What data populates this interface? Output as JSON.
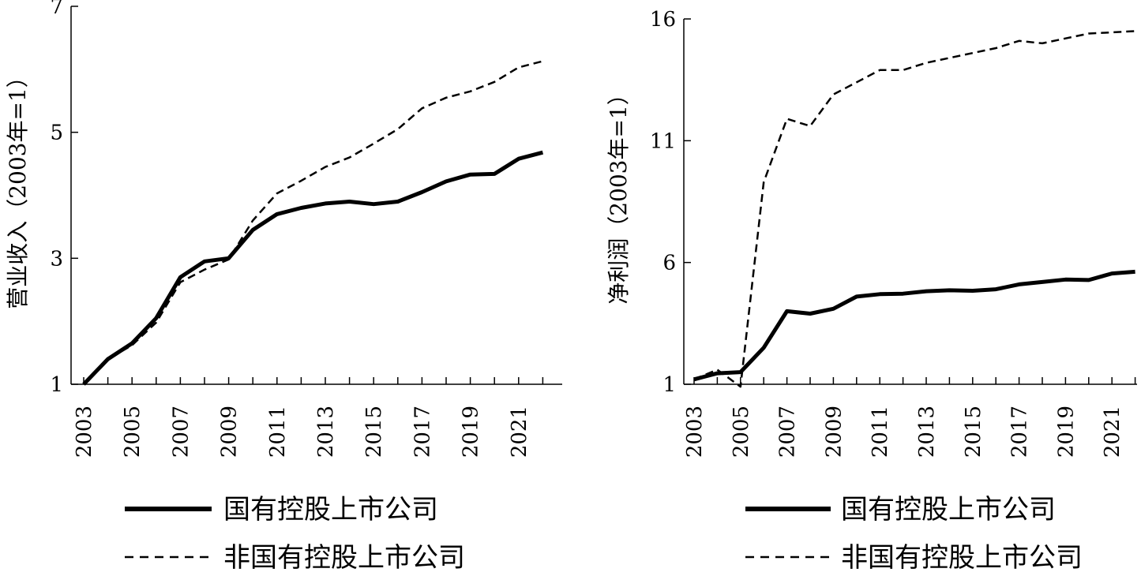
{
  "chart_data": [
    {
      "type": "line",
      "title": "",
      "xlabel": "",
      "ylabel": "营业收入（2003年=1）",
      "ylim": [
        1,
        7
      ],
      "yticks": [
        1,
        3,
        5,
        7
      ],
      "x": [
        2003,
        2004,
        2005,
        2006,
        2007,
        2008,
        2009,
        2010,
        2011,
        2012,
        2013,
        2014,
        2015,
        2016,
        2017,
        2018,
        2019,
        2020,
        2021,
        2022
      ],
      "xticks": [
        "2003",
        "2005",
        "2007",
        "2009",
        "2011",
        "2013",
        "2015",
        "2017",
        "2019",
        "2021"
      ],
      "series": [
        {
          "name": "国有控股上市公司",
          "style": "solid",
          "values": [
            1.0,
            1.4,
            1.65,
            2.05,
            2.7,
            2.95,
            3.0,
            3.45,
            3.7,
            3.8,
            3.87,
            3.9,
            3.86,
            3.9,
            4.05,
            4.22,
            4.33,
            4.34,
            4.58,
            4.68
          ]
        },
        {
          "name": "非国有控股上市公司",
          "style": "dashed",
          "values": [
            1.0,
            1.4,
            1.62,
            1.98,
            2.62,
            2.82,
            2.98,
            3.6,
            4.03,
            4.23,
            4.45,
            4.6,
            4.82,
            5.05,
            5.38,
            5.55,
            5.65,
            5.8,
            6.03,
            6.13
          ]
        }
      ],
      "grid": false,
      "legend_position": "bottom"
    },
    {
      "type": "line",
      "title": "",
      "xlabel": "",
      "ylabel": "净利润（2003年=1）",
      "ylim": [
        1,
        16
      ],
      "yticks": [
        1,
        6,
        11,
        16
      ],
      "x": [
        2003,
        2004,
        2005,
        2006,
        2007,
        2008,
        2009,
        2010,
        2011,
        2012,
        2013,
        2014,
        2015,
        2016,
        2017,
        2018,
        2019,
        2020,
        2021,
        2022
      ],
      "xticks": [
        "2003",
        "2005",
        "2007",
        "2009",
        "2011",
        "2013",
        "2015",
        "2017",
        "2019",
        "2021"
      ],
      "series": [
        {
          "name": "国有控股上市公司",
          "style": "solid",
          "values": [
            1.2,
            1.45,
            1.5,
            2.5,
            4.0,
            3.9,
            4.1,
            4.6,
            4.7,
            4.72,
            4.82,
            4.86,
            4.84,
            4.9,
            5.1,
            5.2,
            5.3,
            5.28,
            5.55,
            5.62
          ]
        },
        {
          "name": "非国有控股上市公司",
          "style": "dashed",
          "values": [
            1.2,
            1.6,
            0.9,
            9.3,
            11.9,
            11.6,
            12.9,
            13.4,
            13.9,
            13.9,
            14.2,
            14.4,
            14.6,
            14.8,
            15.1,
            15.0,
            15.2,
            15.4,
            15.45,
            15.5
          ]
        }
      ],
      "grid": false,
      "legend_position": "bottom"
    }
  ],
  "legends": [
    {
      "items": [
        {
          "label": "国有控股上市公司",
          "style": "solid"
        },
        {
          "label": "非国有控股上市公司",
          "style": "dashed"
        }
      ]
    },
    {
      "items": [
        {
          "label": "国有控股上市公司",
          "style": "solid"
        },
        {
          "label": "非国有控股上市公司",
          "style": "dashed"
        }
      ]
    }
  ]
}
